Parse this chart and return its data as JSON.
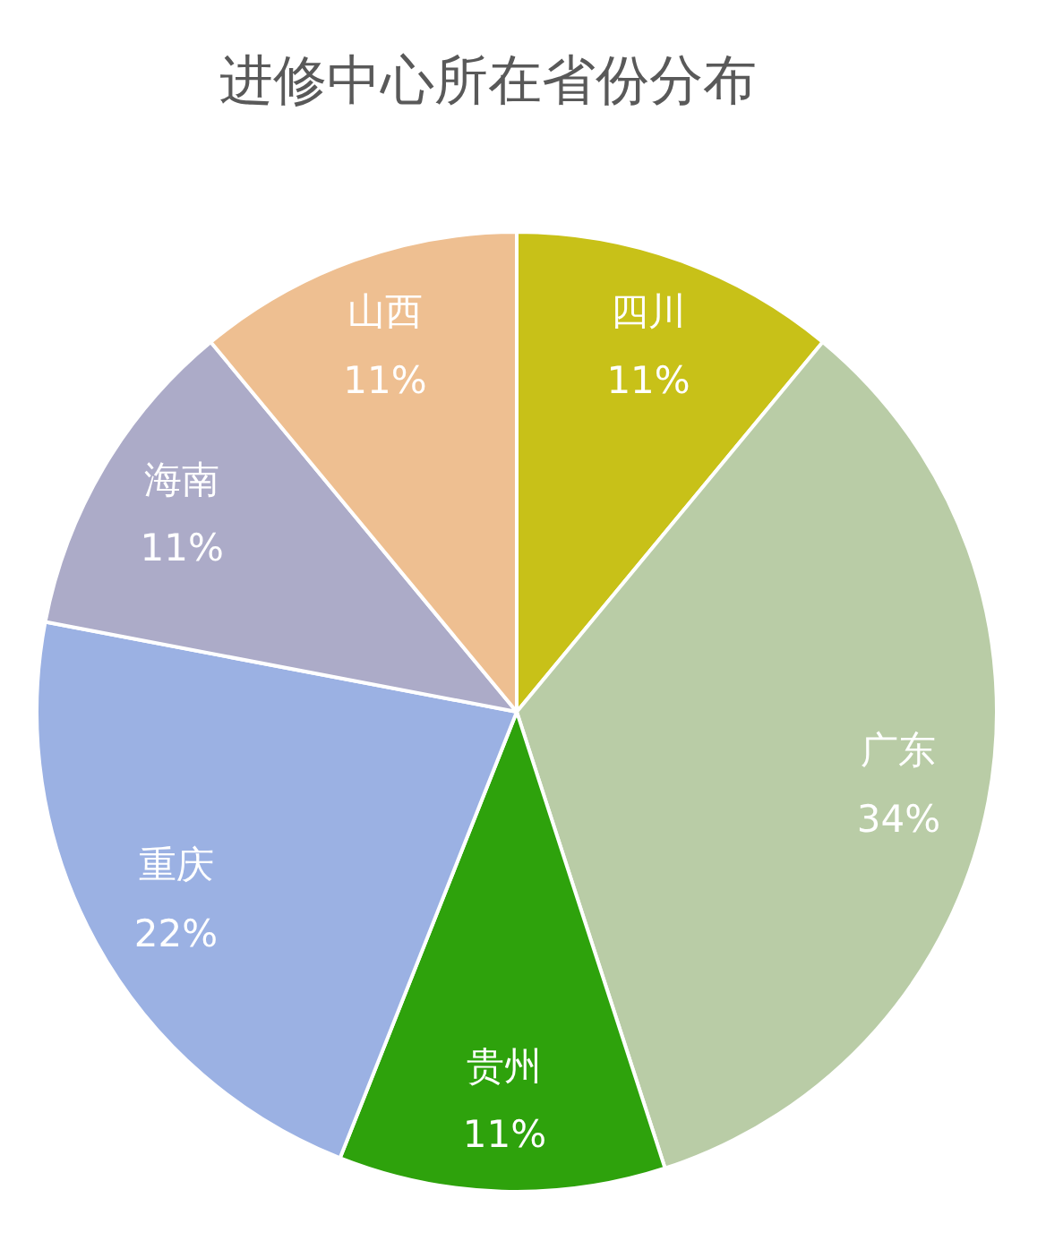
{
  "chart_data": {
    "type": "pie",
    "title": "进修中心所在省份分布",
    "categories": [
      "四川",
      "广东",
      "贵州",
      "重庆",
      "海南",
      "山西"
    ],
    "values": [
      11,
      34,
      11,
      22,
      11,
      11
    ],
    "colors": [
      "#c8c118",
      "#b9cca6",
      "#2ea20c",
      "#9bb1e3",
      "#acabc8",
      "#eebf91"
    ],
    "value_labels": [
      "11%",
      "34%",
      "11%",
      "22%",
      "11%",
      "11%"
    ]
  }
}
